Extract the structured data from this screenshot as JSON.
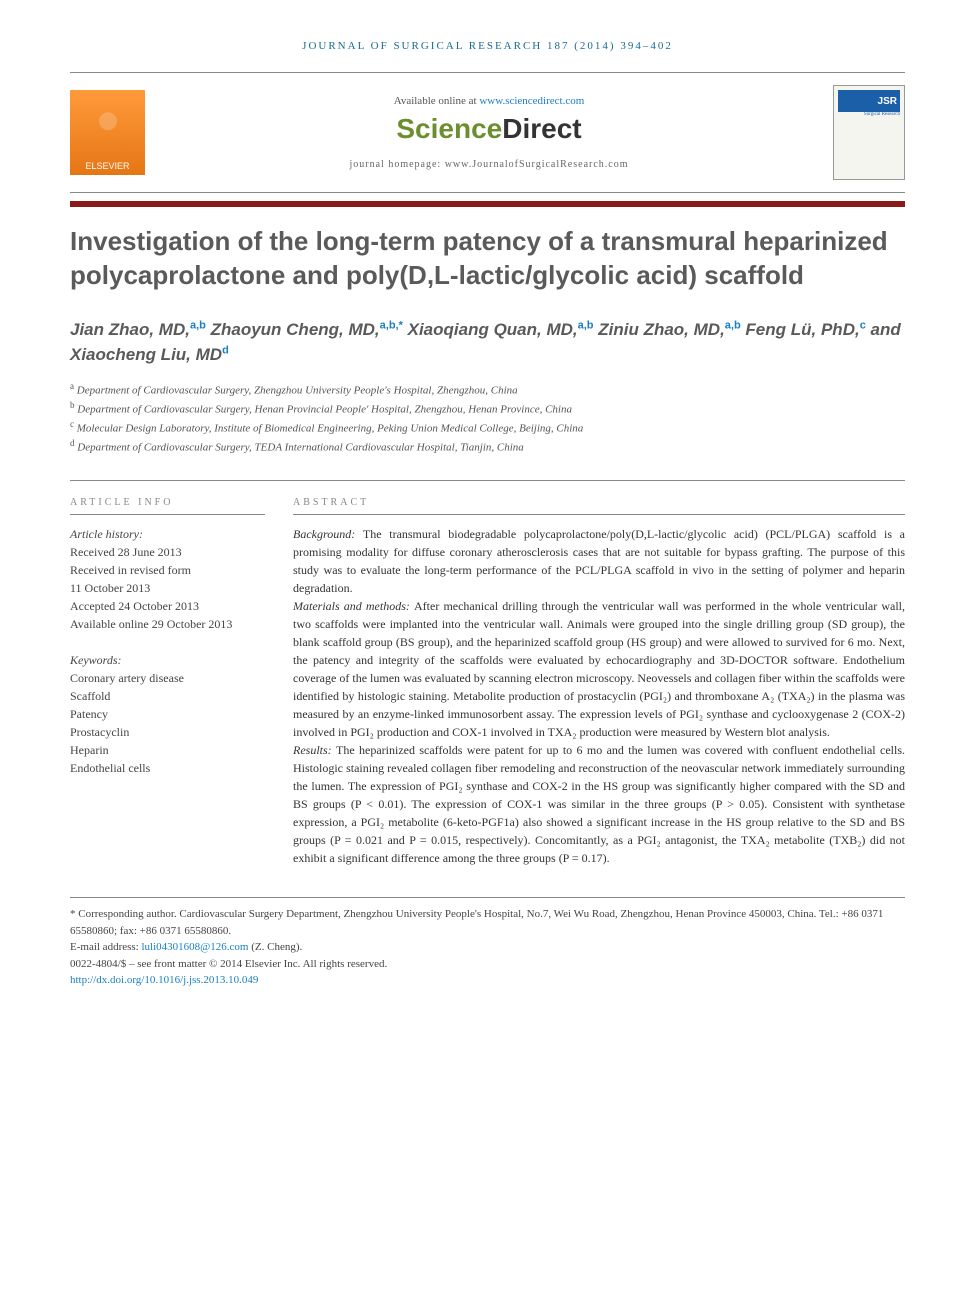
{
  "running_head": "JOURNAL OF SURGICAL RESEARCH 187 (2014) 394–402",
  "header": {
    "elsevier": "ELSEVIER",
    "available_prefix": "Available online at ",
    "available_url": "www.sciencedirect.com",
    "sd_science": "Science",
    "sd_direct": "Direct",
    "homepage_label": "journal homepage: ",
    "homepage_url": "www.JournalofSurgicalResearch.com",
    "cover_abbr": "JSR",
    "cover_sub": "Surgical Research"
  },
  "title": "Investigation of the long-term patency of a transmural heparinized polycaprolactone and poly(D,L-lactic/glycolic acid) scaffold",
  "authors_html": "Jian Zhao, MD,<sup>a,b</sup> Zhaoyun Cheng, MD,<sup>a,b,</sup><sup class=\"star\">*</sup> Xiaoqiang Quan, MD,<sup>a,b</sup> Ziniu Zhao, MD,<sup>a,b</sup> Feng Lü, PhD,<sup>c</sup> and Xiaocheng Liu, MD<sup>d</sup>",
  "affiliations": [
    {
      "sup": "a",
      "text": "Department of Cardiovascular Surgery, Zhengzhou University People's Hospital, Zhengzhou, China"
    },
    {
      "sup": "b",
      "text": "Department of Cardiovascular Surgery, Henan Provincial People' Hospital, Zhengzhou, Henan Province, China"
    },
    {
      "sup": "c",
      "text": "Molecular Design Laboratory, Institute of Biomedical Engineering, Peking Union Medical College, Beijing, China"
    },
    {
      "sup": "d",
      "text": "Department of Cardiovascular Surgery, TEDA International Cardiovascular Hospital, Tianjin, China"
    }
  ],
  "article_info": {
    "head": "ARTICLE INFO",
    "history_label": "Article history:",
    "history": [
      "Received 28 June 2013",
      "Received in revised form",
      "11 October 2013",
      "Accepted 24 October 2013",
      "Available online 29 October 2013"
    ],
    "keywords_label": "Keywords:",
    "keywords": [
      "Coronary artery disease",
      "Scaffold",
      "Patency",
      "Prostacyclin",
      "Heparin",
      "Endothelial cells"
    ]
  },
  "abstract": {
    "head": "ABSTRACT",
    "sections": [
      {
        "label": "Background:",
        "text": "The transmural biodegradable polycaprolactone/poly(D,L-lactic/glycolic acid) (PCL/PLGA) scaffold is a promising modality for diffuse coronary atherosclerosis cases that are not suitable for bypass grafting. The purpose of this study was to evaluate the long-term performance of the PCL/PLGA scaffold in vivo in the setting of polymer and heparin degradation."
      },
      {
        "label": "Materials and methods:",
        "text": "After mechanical drilling through the ventricular wall was performed in the whole ventricular wall, two scaffolds were implanted into the ventricular wall. Animals were grouped into the single drilling group (SD group), the blank scaffold group (BS group), and the heparinized scaffold group (HS group) and were allowed to survived for 6 mo. Next, the patency and integrity of the scaffolds were evaluated by echocardiography and 3D-DOCTOR software. Endothelium coverage of the lumen was evaluated by scanning electron microscopy. Neovessels and collagen fiber within the scaffolds were identified by histologic staining. Metabolite production of prostacyclin (PGI₂) and thromboxane A₂ (TXA₂) in the plasma was measured by an enzyme-linked immunosorbent assay. The expression levels of PGI₂ synthase and cyclooxygenase 2 (COX-2) involved in PGI₂ production and COX-1 involved in TXA₂ production were measured by Western blot analysis."
      },
      {
        "label": "Results:",
        "text": "The heparinized scaffolds were patent for up to 6 mo and the lumen was covered with confluent endothelial cells. Histologic staining revealed collagen fiber remodeling and reconstruction of the neovascular network immediately surrounding the lumen. The expression of PGI₂ synthase and COX-2 in the HS group was significantly higher compared with the SD and BS groups (P < 0.01). The expression of COX-1 was similar in the three groups (P > 0.05). Consistent with synthetase expression, a PGI₂ metabolite (6-keto-PGF1a) also showed a significant increase in the HS group relative to the SD and BS groups (P = 0.021 and P = 0.015, respectively). Concomitantly, as a PGI₂ antagonist, the TXA₂ metabolite (TXB₂) did not exhibit a significant difference among the three groups (P = 0.17)."
      }
    ]
  },
  "footnotes": {
    "corresponding": "* Corresponding author. Cardiovascular Surgery Department, Zhengzhou University People's Hospital, No.7, Wei Wu Road, Zhengzhou, Henan Province 450003, China. Tel.: +86 0371 65580860; fax: +86 0371 65580860.",
    "email_label": "E-mail address: ",
    "email": "luli04301608@126.com",
    "email_suffix": " (Z. Cheng).",
    "issn": "0022-4804/$ – see front matter © 2014 Elsevier Inc. All rights reserved.",
    "doi": "http://dx.doi.org/10.1016/j.jss.2013.10.049"
  },
  "colors": {
    "link": "#1a7fc4",
    "crimson": "#8b1a1a",
    "elsevier_orange": "#e67614",
    "sd_green": "#6b8f2e",
    "heading_gray": "#5a5a5a"
  }
}
